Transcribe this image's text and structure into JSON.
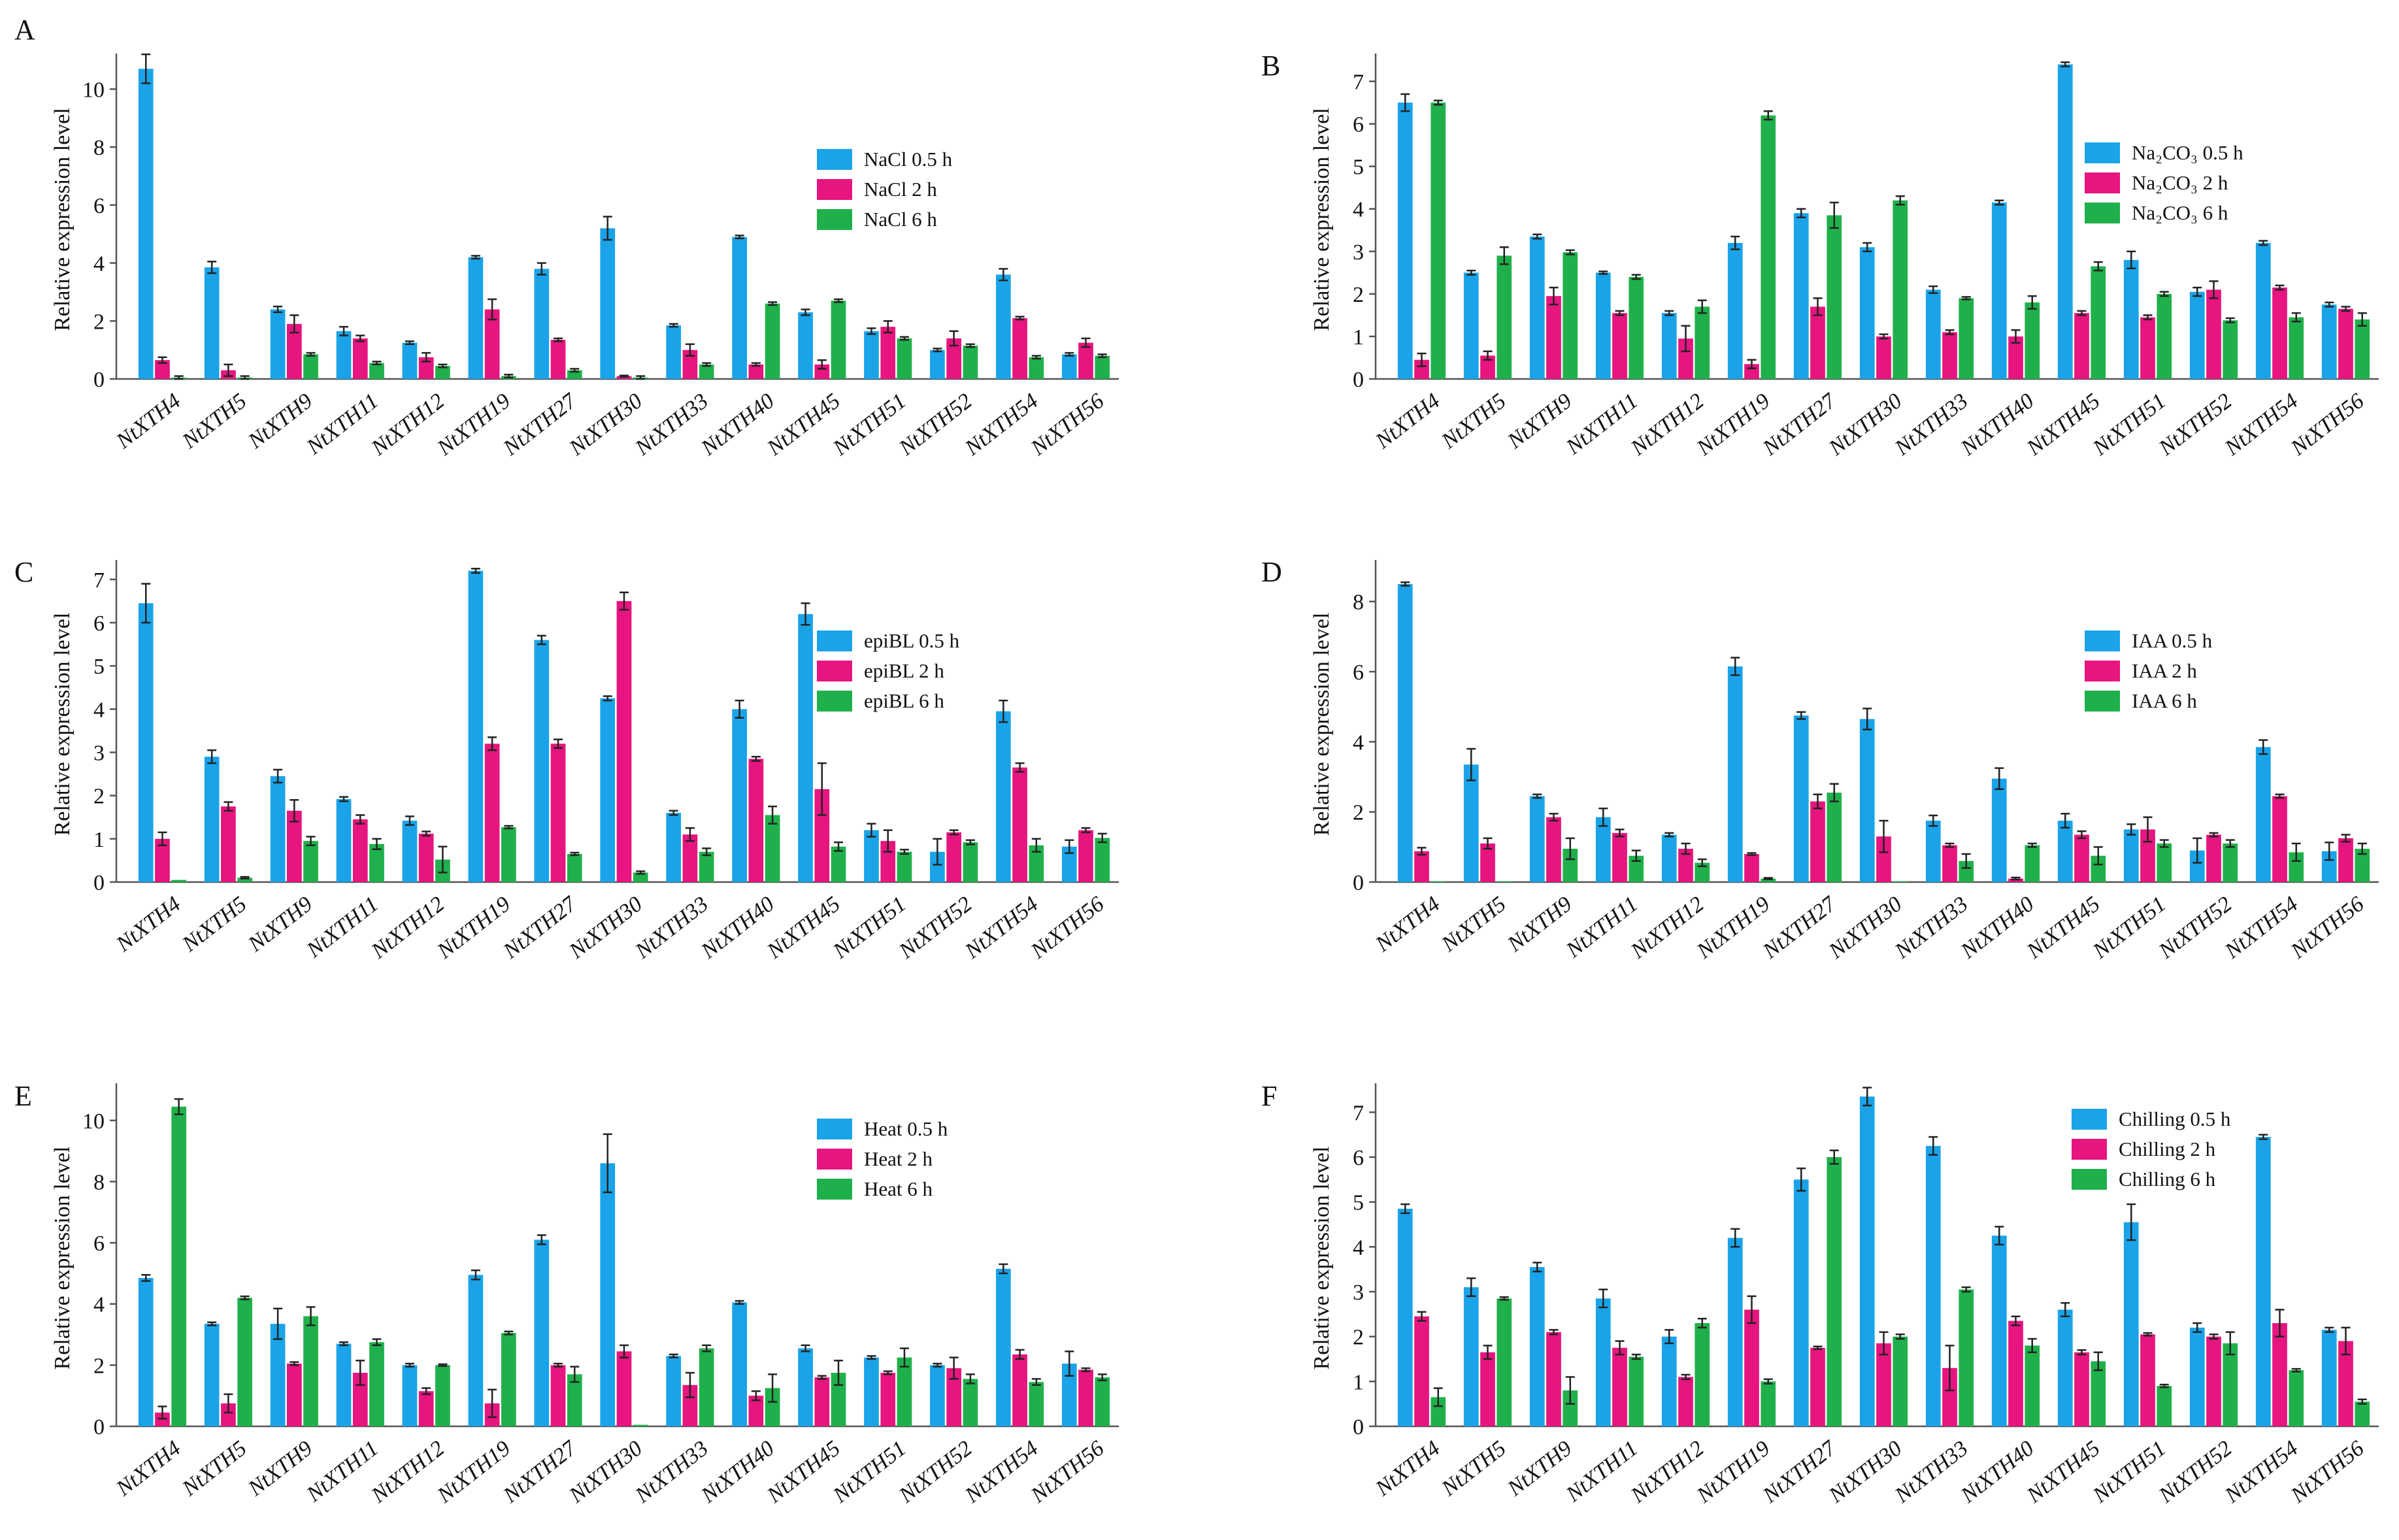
{
  "figure": {
    "categories": [
      "NtXTH4",
      "NtXTH5",
      "NtXTH9",
      "NtXTH11",
      "NtXTH12",
      "NtXTH19",
      "NtXTH27",
      "NtXTH30",
      "NtXTH33",
      "NtXTH40",
      "NtXTH45",
      "NtXTH51",
      "NtXTH52",
      "NtXTH54",
      "NtXTH56"
    ],
    "ylabel": "Relative expression level",
    "colors": {
      "s0": "#1aa3e8",
      "s1": "#e6157f",
      "s2": "#20b04b"
    }
  },
  "chart_data": [
    {
      "type": "bar",
      "panel": "A",
      "ylim": [
        0,
        11
      ],
      "yticks": [
        0,
        2,
        4,
        6,
        8,
        10
      ],
      "ylabel": "Relative expression level",
      "categories": [
        "NtXTH4",
        "NtXTH5",
        "NtXTH9",
        "NtXTH11",
        "NtXTH12",
        "NtXTH19",
        "NtXTH27",
        "NtXTH30",
        "NtXTH33",
        "NtXTH40",
        "NtXTH45",
        "NtXTH51",
        "NtXTH52",
        "NtXTH54",
        "NtXTH56"
      ],
      "legend": "right-upper",
      "series": [
        {
          "name": "NaCl 0.5 h",
          "values": [
            10.7,
            3.85,
            2.4,
            1.65,
            1.25,
            4.2,
            3.8,
            5.2,
            1.85,
            4.9,
            2.3,
            1.65,
            1.0,
            3.6,
            0.85
          ],
          "errors": [
            0.5,
            0.2,
            0.1,
            0.15,
            0.05,
            0.05,
            0.2,
            0.4,
            0.05,
            0.05,
            0.1,
            0.1,
            0.05,
            0.2,
            0.05
          ]
        },
        {
          "name": "NaCl 2 h",
          "values": [
            0.65,
            0.3,
            1.9,
            1.4,
            0.75,
            2.4,
            1.35,
            0.1,
            1.0,
            0.5,
            0.5,
            1.8,
            1.4,
            2.1,
            1.25
          ],
          "errors": [
            0.1,
            0.2,
            0.3,
            0.1,
            0.15,
            0.35,
            0.05,
            0.02,
            0.2,
            0.05,
            0.15,
            0.2,
            0.25,
            0.05,
            0.15
          ]
        },
        {
          "name": "NaCl 6 h",
          "values": [
            0.05,
            0.05,
            0.85,
            0.55,
            0.45,
            0.1,
            0.3,
            0.05,
            0.5,
            2.6,
            2.7,
            1.4,
            1.15,
            0.75,
            0.8
          ]
        }
      ]
    },
    {
      "type": "bar",
      "panel": "B",
      "ylim": [
        0,
        7.5
      ],
      "yticks": [
        0,
        1,
        2,
        3,
        4,
        5,
        6,
        7
      ],
      "ylabel": "Relative expression level",
      "categories": [
        "NtXTH4",
        "NtXTH5",
        "NtXTH9",
        "NtXTH11",
        "NtXTH12",
        "NtXTH19",
        "NtXTH27",
        "NtXTH30",
        "NtXTH33",
        "NtXTH40",
        "NtXTH45",
        "NtXTH51",
        "NtXTH52",
        "NtXTH54",
        "NtXTH56"
      ],
      "legend": "right-upper",
      "series": [
        {
          "name": "Na₂CO₃ 0.5 h",
          "values": [
            6.5,
            2.5,
            3.35,
            2.5,
            1.55,
            3.2,
            3.9,
            3.1,
            2.1,
            4.15,
            7.4,
            2.8,
            2.05,
            3.2,
            1.75
          ],
          "errors": [
            0.2,
            0.05,
            0.05,
            0.03,
            0.05,
            0.15,
            0.1,
            0.1,
            0.08,
            0.05,
            0.05,
            0.2,
            0.1,
            0.05,
            0.05
          ]
        },
        {
          "name": "Na₂CO₃ 2 h",
          "values": [
            0.45,
            0.55,
            1.95,
            1.55,
            0.95,
            0.35,
            1.7,
            1.0,
            1.1,
            1.0,
            1.55,
            1.45,
            2.1,
            2.15,
            1.65
          ],
          "errors": [
            0.15,
            0.1,
            0.2,
            0.05,
            0.3,
            0.1,
            0.2,
            0.05,
            0.05,
            0.15,
            0.05,
            0.05,
            0.2,
            0.05,
            0.05
          ]
        },
        {
          "name": "Na₂CO₃ 6 h",
          "values": [
            6.5,
            2.9,
            2.98,
            2.4,
            1.7,
            6.2,
            3.85,
            4.2,
            1.9,
            1.8,
            2.65,
            2.0,
            1.38,
            1.45,
            1.4
          ],
          "errors": [
            0.05,
            0.2,
            0.05,
            0.05,
            0.15,
            0.1,
            0.3,
            0.1,
            0.03,
            0.15,
            0.1,
            0.05,
            0.05,
            0.1,
            0.15
          ]
        }
      ]
    },
    {
      "type": "bar",
      "panel": "C",
      "ylim": [
        0,
        7.3
      ],
      "yticks": [
        0,
        1,
        2,
        3,
        4,
        5,
        6,
        7
      ],
      "ylabel": "Relative expression level",
      "categories": [
        "NtXTH4",
        "NtXTH5",
        "NtXTH9",
        "NtXTH11",
        "NtXTH12",
        "NtXTH19",
        "NtXTH27",
        "NtXTH30",
        "NtXTH33",
        "NtXTH40",
        "NtXTH45",
        "NtXTH51",
        "NtXTH52",
        "NtXTH54",
        "NtXTH56"
      ],
      "legend": "right-upper",
      "series": [
        {
          "name": "epiBL 0.5 h",
          "values": [
            6.45,
            2.9,
            2.45,
            1.92,
            1.42,
            7.2,
            5.6,
            4.25,
            1.6,
            4.0,
            6.2,
            1.2,
            0.7,
            3.95,
            0.82
          ],
          "errors": [
            0.45,
            0.15,
            0.15,
            0.05,
            0.1,
            0.05,
            0.1,
            0.05,
            0.05,
            0.2,
            0.25,
            0.15,
            0.3,
            0.25,
            0.15
          ]
        },
        {
          "name": "epiBL 2 h",
          "values": [
            1.0,
            1.75,
            1.65,
            1.45,
            1.12,
            3.2,
            3.2,
            6.5,
            1.1,
            2.85,
            2.15,
            0.95,
            1.15,
            2.65,
            1.2
          ],
          "errors": [
            0.15,
            0.1,
            0.25,
            0.1,
            0.05,
            0.15,
            0.1,
            0.2,
            0.15,
            0.05,
            0.6,
            0.25,
            0.05,
            0.1,
            0.05
          ]
        },
        {
          "name": "epiBL 6 h",
          "values": [
            0.05,
            0.1,
            0.95,
            0.88,
            0.52,
            1.27,
            0.65,
            0.22,
            0.7,
            1.55,
            0.82,
            0.7,
            0.92,
            0.85,
            1.02
          ],
          "errors": [
            0.0,
            0.02,
            0.1,
            0.12,
            0.3,
            0.03,
            0.03,
            0.03,
            0.08,
            0.2,
            0.1,
            0.05,
            0.05,
            0.15,
            0.1
          ]
        }
      ]
    },
    {
      "type": "bar",
      "panel": "D",
      "ylim": [
        0,
        9
      ],
      "yticks": [
        0,
        2,
        4,
        6,
        8
      ],
      "ylabel": "Relative expression level",
      "categories": [
        "NtXTH4",
        "NtXTH5",
        "NtXTH9",
        "NtXTH11",
        "NtXTH12",
        "NtXTH19",
        "NtXTH27",
        "NtXTH30",
        "NtXTH33",
        "NtXTH40",
        "NtXTH45",
        "NtXTH51",
        "NtXTH52",
        "NtXTH54",
        "NtXTH56"
      ],
      "legend": "right-upper",
      "series": [
        {
          "name": "IAA 0.5 h",
          "values": [
            8.5,
            3.35,
            2.45,
            1.85,
            1.35,
            6.15,
            4.75,
            4.65,
            1.75,
            2.95,
            1.75,
            1.5,
            0.9,
            3.85,
            0.88
          ],
          "errors": [
            0.05,
            0.45,
            0.05,
            0.25,
            0.05,
            0.25,
            0.1,
            0.3,
            0.15,
            0.3,
            0.2,
            0.15,
            0.35,
            0.2,
            0.25
          ]
        },
        {
          "name": "IAA 2 h",
          "values": [
            0.88,
            1.1,
            1.85,
            1.4,
            0.95,
            0.8,
            2.3,
            1.3,
            1.05,
            0.1,
            1.35,
            1.5,
            1.35,
            2.45,
            1.25
          ],
          "errors": [
            0.1,
            0.15,
            0.1,
            0.1,
            0.15,
            0.03,
            0.2,
            0.45,
            0.05,
            0.03,
            0.1,
            0.35,
            0.05,
            0.05,
            0.1
          ]
        },
        {
          "name": "IAA 6 h",
          "values": [
            0.02,
            0.02,
            0.95,
            0.75,
            0.55,
            0.1,
            2.55,
            0.02,
            0.6,
            1.05,
            0.75,
            1.1,
            1.1,
            0.85,
            0.95
          ],
          "errors": [
            0.0,
            0.0,
            0.3,
            0.15,
            0.1,
            0.02,
            0.25,
            0.0,
            0.2,
            0.05,
            0.25,
            0.1,
            0.1,
            0.25,
            0.15
          ]
        }
      ]
    },
    {
      "type": "bar",
      "panel": "E",
      "ylim": [
        0,
        11
      ],
      "yticks": [
        0,
        2,
        4,
        6,
        8,
        10
      ],
      "ylabel": "Relative expression level",
      "categories": [
        "NtXTH4",
        "NtXTH5",
        "NtXTH9",
        "NtXTH11",
        "NtXTH12",
        "NtXTH19",
        "NtXTH27",
        "NtXTH30",
        "NtXTH33",
        "NtXTH40",
        "NtXTH45",
        "NtXTH51",
        "NtXTH52",
        "NtXTH54",
        "NtXTH56"
      ],
      "legend": "right-upper",
      "series": [
        {
          "name": "Heat 0.5 h",
          "values": [
            4.85,
            3.35,
            3.35,
            2.7,
            2.0,
            4.95,
            6.1,
            8.6,
            2.3,
            4.05,
            2.55,
            2.25,
            2.0,
            5.15,
            2.05
          ],
          "errors": [
            0.1,
            0.05,
            0.5,
            0.05,
            0.05,
            0.15,
            0.15,
            0.95,
            0.05,
            0.05,
            0.1,
            0.05,
            0.05,
            0.15,
            0.4
          ]
        },
        {
          "name": "Heat 2 h",
          "values": [
            0.45,
            0.75,
            2.05,
            1.75,
            1.15,
            0.75,
            2.0,
            2.45,
            1.35,
            1.0,
            1.6,
            1.75,
            1.9,
            2.35,
            1.85
          ],
          "errors": [
            0.2,
            0.3,
            0.05,
            0.4,
            0.1,
            0.45,
            0.05,
            0.2,
            0.4,
            0.15,
            0.05,
            0.05,
            0.35,
            0.15,
            0.05
          ]
        },
        {
          "name": "Heat 6 h",
          "values": [
            10.45,
            4.2,
            3.6,
            2.75,
            2.0,
            3.05,
            1.7,
            0.05,
            2.55,
            1.25,
            1.75,
            2.25,
            1.55,
            1.45,
            1.6
          ],
          "errors": [
            0.25,
            0.05,
            0.3,
            0.1,
            0.03,
            0.05,
            0.25,
            0.0,
            0.1,
            0.45,
            0.4,
            0.3,
            0.15,
            0.1,
            0.1
          ]
        }
      ]
    },
    {
      "type": "bar",
      "panel": "F",
      "ylim": [
        0,
        7.5
      ],
      "yticks": [
        0,
        1,
        2,
        3,
        4,
        5,
        6,
        7
      ],
      "ylabel": "Relative expression level",
      "categories": [
        "NtXTH4",
        "NtXTH5",
        "NtXTH9",
        "NtXTH11",
        "NtXTH12",
        "NtXTH19",
        "NtXTH27",
        "NtXTH30",
        "NtXTH33",
        "NtXTH40",
        "NtXTH45",
        "NtXTH51",
        "NtXTH52",
        "NtXTH54",
        "NtXTH56"
      ],
      "legend": "right-upper",
      "series": [
        {
          "name": "Chilling 0.5 h",
          "values": [
            4.85,
            3.1,
            3.55,
            2.85,
            2.0,
            4.2,
            5.5,
            7.35,
            6.25,
            4.25,
            2.6,
            4.55,
            2.2,
            6.45,
            2.15
          ],
          "errors": [
            0.1,
            0.2,
            0.1,
            0.2,
            0.15,
            0.2,
            0.25,
            0.2,
            0.2,
            0.2,
            0.15,
            0.4,
            0.1,
            0.05,
            0.05
          ]
        },
        {
          "name": "Chilling 2 h",
          "values": [
            2.45,
            1.65,
            2.1,
            1.75,
            1.1,
            2.6,
            1.75,
            1.85,
            1.3,
            2.35,
            1.65,
            2.05,
            2.0,
            2.3,
            1.9
          ],
          "errors": [
            0.1,
            0.15,
            0.05,
            0.15,
            0.05,
            0.3,
            0.03,
            0.25,
            0.5,
            0.1,
            0.05,
            0.03,
            0.05,
            0.3,
            0.3
          ]
        },
        {
          "name": "Chilling 6 h",
          "values": [
            0.65,
            2.85,
            0.8,
            1.55,
            2.3,
            1.0,
            6.0,
            2.0,
            3.05,
            1.8,
            1.45,
            0.9,
            1.85,
            1.25,
            0.55
          ],
          "errors": [
            0.2,
            0.03,
            0.3,
            0.05,
            0.1,
            0.05,
            0.15,
            0.05,
            0.05,
            0.15,
            0.2,
            0.03,
            0.25,
            0.03,
            0.05
          ]
        }
      ]
    }
  ]
}
